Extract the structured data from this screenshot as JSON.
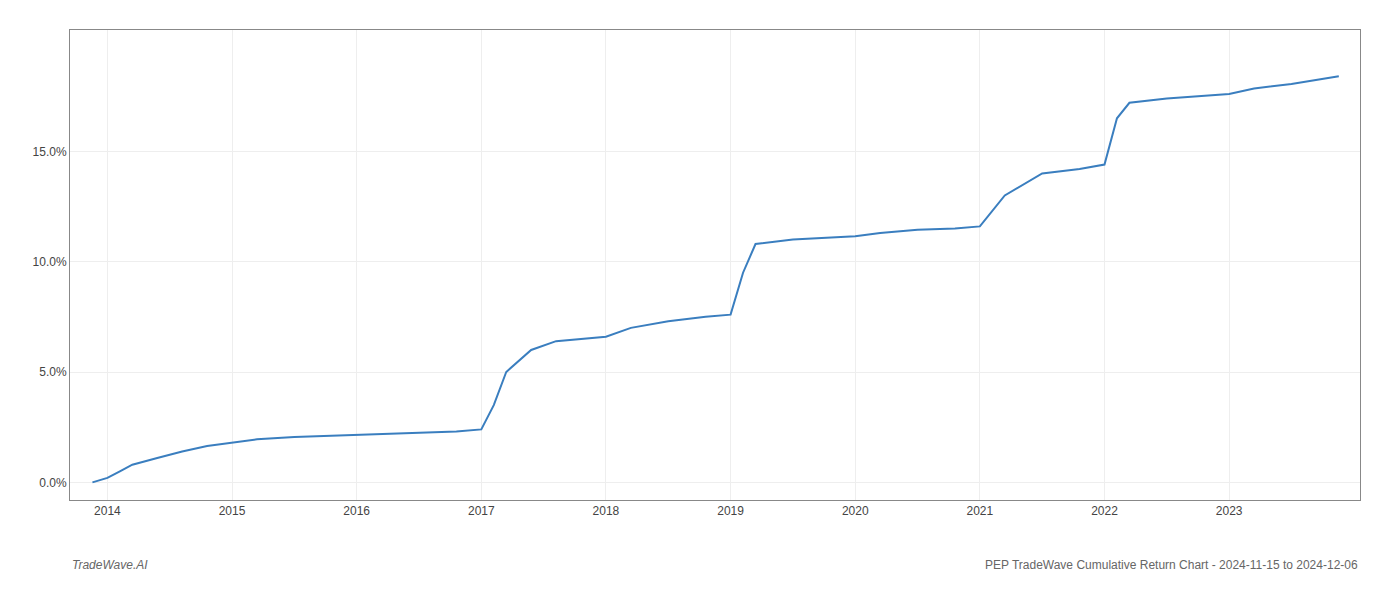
{
  "chart_data": {
    "type": "line",
    "x": [
      2013.88,
      2014.0,
      2014.1,
      2014.2,
      2014.4,
      2014.6,
      2014.8,
      2015.0,
      2015.2,
      2015.5,
      2015.8,
      2016.0,
      2016.2,
      2016.5,
      2016.8,
      2017.0,
      2017.1,
      2017.2,
      2017.4,
      2017.6,
      2017.8,
      2018.0,
      2018.2,
      2018.5,
      2018.8,
      2019.0,
      2019.1,
      2019.2,
      2019.5,
      2019.8,
      2020.0,
      2020.2,
      2020.5,
      2020.8,
      2021.0,
      2021.2,
      2021.5,
      2021.8,
      2022.0,
      2022.1,
      2022.2,
      2022.5,
      2022.8,
      2023.0,
      2023.2,
      2023.5,
      2023.88
    ],
    "values": [
      0.0,
      0.2,
      0.5,
      0.8,
      1.1,
      1.4,
      1.65,
      1.8,
      1.95,
      2.05,
      2.1,
      2.15,
      2.2,
      2.25,
      2.3,
      2.4,
      3.5,
      5.0,
      6.0,
      6.4,
      6.5,
      6.6,
      7.0,
      7.3,
      7.5,
      7.6,
      9.5,
      10.8,
      11.0,
      11.1,
      11.15,
      11.3,
      11.45,
      11.5,
      11.6,
      13.0,
      14.0,
      14.2,
      14.4,
      16.5,
      17.2,
      17.4,
      17.5,
      17.6,
      17.85,
      18.05,
      18.4
    ],
    "color": "#3a7ebf",
    "xlim": [
      2013.7,
      2024.05
    ],
    "xticks": [
      2014,
      2015,
      2016,
      2017,
      2018,
      2019,
      2020,
      2021,
      2022,
      2023
    ],
    "ylim": [
      -0.8,
      20.5
    ],
    "yticks": [
      {
        "value": 0.0,
        "label": "0.0%"
      },
      {
        "value": 5.0,
        "label": "5.0%"
      },
      {
        "value": 10.0,
        "label": "10.0%"
      },
      {
        "value": 15.0,
        "label": "15.0%"
      }
    ],
    "grid": true,
    "annotations": [
      "TradeWave.AI",
      "PEP TradeWave Cumulative Return Chart - 2024-11-15 to 2024-12-06"
    ]
  }
}
